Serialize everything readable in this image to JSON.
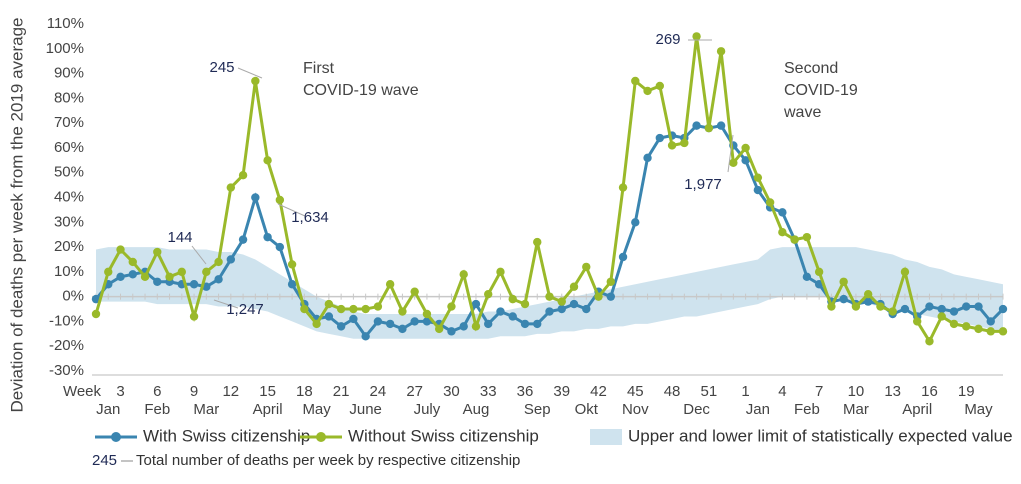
{
  "chart_data": {
    "type": "line",
    "y_label": "Deviation of deaths per week from the 2019 average",
    "x_axis_label": "Week",
    "categories": [
      null,
      null,
      "3",
      null,
      null,
      "6",
      null,
      null,
      "9",
      null,
      null,
      "12",
      null,
      null,
      "15",
      null,
      null,
      "18",
      null,
      null,
      "21",
      null,
      null,
      "24",
      null,
      null,
      "27",
      null,
      null,
      "30",
      null,
      null,
      "33",
      null,
      null,
      "36",
      null,
      null,
      "39",
      null,
      null,
      "42",
      null,
      null,
      "45",
      null,
      null,
      "48",
      null,
      null,
      "51",
      null,
      null,
      "1",
      null,
      null,
      "4",
      null,
      null,
      "7",
      null,
      null,
      "10",
      null,
      null,
      "13",
      null,
      null,
      "16",
      null,
      null,
      "19",
      null,
      null,
      null
    ],
    "months": [
      null,
      "Jan",
      null,
      null,
      null,
      "Feb",
      null,
      null,
      null,
      "Mar",
      null,
      null,
      null,
      null,
      "April",
      null,
      null,
      null,
      "May",
      null,
      null,
      null,
      "June",
      null,
      null,
      null,
      null,
      "July",
      null,
      null,
      null,
      "Aug",
      null,
      null,
      null,
      null,
      "Sep",
      null,
      null,
      null,
      "Okt",
      null,
      null,
      null,
      "Nov",
      null,
      null,
      null,
      null,
      "Dec",
      null,
      null,
      null,
      null,
      "Jan",
      null,
      null,
      null,
      "Feb",
      null,
      null,
      null,
      "Mar",
      null,
      null,
      null,
      null,
      "April",
      null,
      null,
      null,
      null,
      "May",
      null,
      null
    ],
    "series": [
      {
        "name": "With Swiss citizenship",
        "color": "#3a85b0",
        "values": [
          -1,
          5,
          8,
          9,
          10,
          6,
          6,
          5,
          5,
          4,
          7,
          15,
          23,
          40,
          24,
          20,
          5,
          -3,
          -9,
          -8,
          -12,
          -9,
          -16,
          -10,
          -11,
          -13,
          -10,
          -10,
          -11,
          -14,
          -12,
          -3,
          -11,
          -6,
          -8,
          -11,
          -11,
          -6,
          -5,
          -3,
          -5,
          2,
          0,
          16,
          30,
          56,
          64,
          65,
          64,
          69,
          68,
          69,
          61,
          55,
          43,
          36,
          34,
          23,
          8,
          5,
          -2,
          -1,
          -3,
          -2,
          -3,
          -7,
          -5,
          -8,
          -4,
          -5,
          -6,
          -4,
          -4,
          -10,
          -5
        ]
      },
      {
        "name": "Without Swiss citizenship",
        "color": "#9ab92a",
        "values": [
          -7,
          10,
          19,
          14,
          8,
          18,
          8,
          10,
          -8,
          10,
          14,
          44,
          49,
          87,
          55,
          39,
          13,
          -5,
          -11,
          -3,
          -5,
          -5,
          -5,
          -4,
          5,
          -6,
          2,
          -7,
          -13,
          -4,
          9,
          -12,
          1,
          10,
          -1,
          -3,
          22,
          0,
          -2,
          4,
          12,
          0,
          6,
          44,
          87,
          83,
          85,
          61,
          62,
          105,
          68,
          99,
          54,
          60,
          48,
          38,
          26,
          23,
          24,
          10,
          -4,
          6,
          -4,
          1,
          -4,
          -6,
          10,
          -10,
          -18,
          -8,
          -11,
          -12,
          -13,
          -14,
          -14
        ]
      }
    ],
    "band": {
      "name": "Upper and lower limit of statistically expected value",
      "color": "#cfe3ee",
      "upper": [
        19,
        20,
        20,
        20,
        20,
        20,
        19,
        19,
        19,
        19,
        18,
        18,
        17,
        15,
        12,
        9,
        6,
        3,
        0,
        -2,
        -4,
        -6,
        -7,
        -7,
        -7,
        -7,
        -7,
        -7,
        -7,
        -7,
        -7,
        -7,
        -6,
        -6,
        -5,
        -4,
        -3,
        -2,
        -1,
        0,
        1,
        2,
        3,
        4,
        5,
        6,
        7,
        8,
        9,
        10,
        11,
        12,
        13,
        14,
        15,
        19,
        20,
        20,
        20,
        20,
        20,
        20,
        20,
        19,
        18,
        17,
        15,
        14,
        12,
        11,
        9,
        8,
        7,
        6,
        5
      ],
      "lower": [
        -2,
        -2,
        -2,
        -2,
        -2,
        -3,
        -3,
        -3,
        -3,
        -3,
        -4,
        -4,
        -4,
        -5,
        -6,
        -8,
        -10,
        -12,
        -14,
        -15,
        -16,
        -17,
        -17,
        -17,
        -17,
        -17,
        -17,
        -17,
        -17,
        -17,
        -17,
        -17,
        -17,
        -16,
        -16,
        -16,
        -15,
        -15,
        -14,
        -14,
        -13,
        -13,
        -12,
        -12,
        -11,
        -11,
        -10,
        -9,
        -8,
        -8,
        -7,
        -6,
        -5,
        -4,
        -3,
        -1,
        0,
        0,
        0,
        0,
        0,
        -1,
        -2,
        -3,
        -4,
        -5,
        -6,
        -7,
        -8,
        -9,
        -10,
        -11,
        -12,
        -13,
        -14
      ]
    },
    "ylim": [
      -30,
      110
    ],
    "yticks": [
      {
        "value": -30,
        "label": "-30%"
      },
      {
        "value": -20,
        "label": "-20%"
      },
      {
        "value": -10,
        "label": "-10%"
      },
      {
        "value": 0,
        "label": "0%"
      },
      {
        "value": 10,
        "label": "10%"
      },
      {
        "value": 20,
        "label": "20%"
      },
      {
        "value": 30,
        "label": "30%"
      },
      {
        "value": 40,
        "label": "40%"
      },
      {
        "value": 50,
        "label": "50%"
      },
      {
        "value": 60,
        "label": "60%"
      },
      {
        "value": 70,
        "label": "70%"
      },
      {
        "value": 80,
        "label": "80%"
      },
      {
        "value": 90,
        "label": "90%"
      },
      {
        "value": 100,
        "label": "100%"
      },
      {
        "value": 110,
        "label": "110%"
      }
    ],
    "grid": false,
    "annotations": [
      "245",
      "1,634",
      "144",
      "1,247",
      "269",
      "1,977"
    ],
    "wave_labels": [
      [
        "First",
        "COVID-19 wave"
      ],
      [
        "Second",
        "COVID-19",
        "wave"
      ]
    ],
    "note": {
      "number": "245",
      "text": "Total number of deaths per week by respective citizenship"
    }
  }
}
